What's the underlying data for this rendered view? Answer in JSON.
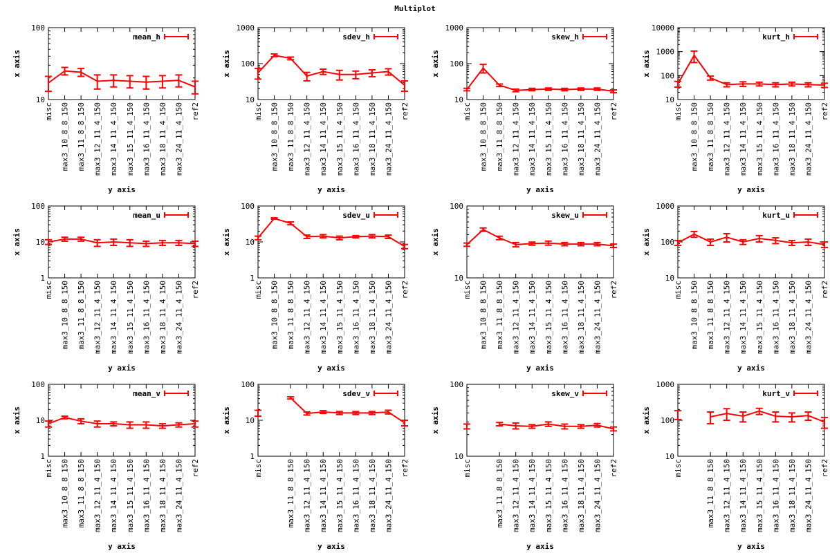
{
  "page": {
    "title": "Multiplot"
  },
  "chart_data": [
    {
      "type": "line",
      "title": "",
      "xlabel": "y axis",
      "ylabel": "x axis",
      "yscale": "log",
      "ylim": [
        10,
        100
      ],
      "yticks": [
        "10",
        "100"
      ],
      "categories": [
        "misc",
        "max3_10_8_8_150",
        "max3_11_8_8_150",
        "max3_12_11_4_150",
        "max3_14_11_4_150",
        "max3_15_11_4_150",
        "max3_16_11_4_150",
        "max3_18_11_4_150",
        "max3_24_11_4_150",
        "ref2"
      ],
      "series": [
        {
          "name": "mean_h",
          "color": "#ff0000",
          "values": [
            17,
            25,
            24,
            18,
            18.5,
            18,
            17.5,
            18,
            18.5,
            15
          ],
          "errors": [
            4,
            3,
            3,
            4,
            3.5,
            3.5,
            3.5,
            3.5,
            3.5,
            3
          ]
        }
      ]
    },
    {
      "type": "line",
      "title": "",
      "xlabel": "y axis",
      "ylabel": "x axis",
      "yscale": "log",
      "ylim": [
        10,
        1000
      ],
      "yticks": [
        "10",
        "100",
        "1000"
      ],
      "categories": [
        "misc",
        "max3_10_8_8_150",
        "max3_11_8_8_150",
        "max3_12_11_4_150",
        "max3_14_11_4_150",
        "max3_15_11_4_150",
        "max3_16_11_4_150",
        "max3_18_11_4_150",
        "max3_24_11_4_150",
        "ref2"
      ],
      "series": [
        {
          "name": "sdev_h",
          "color": "#ff0000",
          "values": [
            55,
            170,
            140,
            45,
            60,
            50,
            50,
            55,
            60,
            25
          ],
          "errors": [
            18,
            15,
            12,
            12,
            10,
            15,
            12,
            12,
            12,
            8
          ]
        }
      ]
    },
    {
      "type": "line",
      "title": "",
      "xlabel": "y axis",
      "ylabel": "x axis",
      "yscale": "log",
      "ylim": [
        10,
        1000
      ],
      "yticks": [
        "10",
        "100",
        "1000"
      ],
      "categories": [
        "misc",
        "max3_10_8_8_150",
        "max3_11_8_8_150",
        "max3_12_11_4_150",
        "max3_14_11_4_150",
        "max3_15_11_4_150",
        "max3_16_11_4_150",
        "max3_18_11_4_150",
        "max3_24_11_4_150",
        "ref2"
      ],
      "series": [
        {
          "name": "skew_h",
          "color": "#ff0000",
          "values": [
            19,
            75,
            25,
            18,
            19,
            19.5,
            19,
            19.5,
            19.5,
            17
          ],
          "errors": [
            1.5,
            20,
            2,
            1.5,
            1.5,
            1.5,
            1.5,
            1.5,
            1.5,
            1.5
          ]
        }
      ]
    },
    {
      "type": "line",
      "title": "",
      "xlabel": "y axis",
      "ylabel": "x axis",
      "yscale": "log",
      "ylim": [
        10,
        10000
      ],
      "yticks": [
        "10",
        "100",
        "1000",
        "10000"
      ],
      "categories": [
        "misc",
        "max3_10_8_8_150",
        "max3_11_8_8_150",
        "max3_12_11_4_150",
        "max3_14_11_4_150",
        "max3_15_11_4_150",
        "max3_16_11_4_150",
        "max3_18_11_4_150",
        "max3_24_11_4_150",
        "ref2"
      ],
      "series": [
        {
          "name": "kurt_h",
          "color": "#ff0000",
          "values": [
            45,
            700,
            80,
            42,
            45,
            45,
            42,
            45,
            42,
            40
          ],
          "errors": [
            12,
            350,
            15,
            8,
            10,
            8,
            8,
            8,
            8,
            8
          ]
        }
      ]
    },
    {
      "type": "line",
      "title": "",
      "xlabel": "y axis",
      "ylabel": "x axis",
      "yscale": "log",
      "ylim": [
        1,
        100
      ],
      "yticks": [
        "1",
        "10",
        "100"
      ],
      "categories": [
        "misc",
        "max3_10_8_8_150",
        "max3_11_8_8_150",
        "max3_12_11_4_150",
        "max3_14_11_4_150",
        "max3_15_11_4_150",
        "max3_16_11_4_150",
        "max3_18_11_4_150",
        "max3_24_11_4_150",
        "ref2"
      ],
      "series": [
        {
          "name": "mean_u",
          "color": "#ff0000",
          "values": [
            10,
            12,
            12,
            9.5,
            10,
            9.5,
            9,
            9.5,
            9.5,
            9
          ],
          "errors": [
            1.5,
            1.5,
            1.5,
            2,
            2,
            2,
            1.5,
            1.5,
            1.5,
            1.5
          ]
        }
      ]
    },
    {
      "type": "line",
      "title": "",
      "xlabel": "y axis",
      "ylabel": "x axis",
      "yscale": "log",
      "ylim": [
        1,
        100
      ],
      "yticks": [
        "1",
        "10",
        "100"
      ],
      "categories": [
        "misc",
        "max3_10_8_8_150",
        "max3_11_8_8_150",
        "max3_12_11_4_150",
        "max3_14_11_4_150",
        "max3_15_11_4_150",
        "max3_16_11_4_150",
        "max3_18_11_4_150",
        "max3_24_11_4_150",
        "ref2"
      ],
      "series": [
        {
          "name": "sdev_u",
          "color": "#ff0000",
          "values": [
            13,
            45,
            33,
            14,
            14.5,
            13,
            14,
            14.5,
            14,
            7.5
          ],
          "errors": [
            1.5,
            2,
            3,
            1.5,
            1.5,
            1.5,
            1,
            1.5,
            1.5,
            1
          ]
        }
      ]
    },
    {
      "type": "line",
      "title": "",
      "xlabel": "y axis",
      "ylabel": "x axis",
      "yscale": "log",
      "ylim": [
        10,
        100
      ],
      "yticks": [
        "10",
        "100"
      ],
      "categories": [
        "misc",
        "max3_10_8_8_150",
        "max3_11_8_8_150",
        "max3_12_11_4_150",
        "max3_14_11_4_150",
        "max3_15_11_4_150",
        "max3_16_11_4_150",
        "max3_18_11_4_150",
        "max3_24_11_4_150",
        "ref2"
      ],
      "series": [
        {
          "name": "skew_u",
          "color": "#ff0000",
          "values": [
            29,
            47,
            36,
            29,
            30,
            30.5,
            29.5,
            29.5,
            29.5,
            28
          ],
          "errors": [
            1.5,
            2.5,
            2,
            2,
            1.5,
            2,
            1.5,
            1.5,
            1.5,
            1.5
          ]
        }
      ]
    },
    {
      "type": "line",
      "title": "",
      "xlabel": "y axis",
      "ylabel": "x axis",
      "yscale": "log",
      "ylim": [
        10,
        1000
      ],
      "yticks": [
        "10",
        "100",
        "1000"
      ],
      "categories": [
        "misc",
        "max3_10_8_8_150",
        "max3_11_8_8_150",
        "max3_12_11_4_150",
        "max3_14_11_4_150",
        "max3_15_11_4_150",
        "max3_16_11_4_150",
        "max3_18_11_4_150",
        "max3_24_11_4_150",
        "ref2"
      ],
      "series": [
        {
          "name": "kurt_u",
          "color": "#ff0000",
          "values": [
            95,
            165,
            100,
            135,
            100,
            125,
            110,
            95,
            100,
            85
          ],
          "errors": [
            15,
            30,
            20,
            35,
            15,
            25,
            20,
            15,
            20,
            15
          ]
        }
      ]
    },
    {
      "type": "line",
      "title": "",
      "xlabel": "y axis",
      "ylabel": "x axis",
      "yscale": "log",
      "ylim": [
        1,
        100
      ],
      "yticks": [
        "1",
        "10",
        "100"
      ],
      "categories": [
        "misc",
        "max3_10_8_8_150",
        "max3_11_8_8_150",
        "max3_12_11_4_150",
        "max3_14_11_4_150",
        "max3_15_11_4_150",
        "max3_16_11_4_150",
        "max3_18_11_4_150",
        "max3_24_11_4_150",
        "ref2"
      ],
      "series": [
        {
          "name": "mean_v",
          "color": "#ff0000",
          "values": [
            8,
            12,
            9.5,
            8,
            8,
            7.5,
            7.5,
            7,
            7.5,
            8
          ],
          "errors": [
            1.5,
            1,
            1.5,
            1.5,
            1,
            1.5,
            1.5,
            1,
            1,
            1.5
          ]
        }
      ]
    },
    {
      "type": "line",
      "title": "",
      "xlabel": "y axis",
      "ylabel": "x axis",
      "yscale": "log",
      "ylim": [
        1,
        100
      ],
      "yticks": [
        "1",
        "10",
        "100"
      ],
      "categories": [
        "misc",
        "max3_11_8_8_150",
        "max3_12_11_4_150",
        "max3_14_11_4_150",
        "max3_15_11_4_150",
        "max3_16_11_4_150",
        "max3_18_11_4_150",
        "max3_24_11_4_150",
        "ref2"
      ],
      "x_positions": [
        0,
        2,
        3,
        4,
        5,
        6,
        7,
        8,
        9
      ],
      "series": [
        {
          "name": "sdev_v",
          "color": "#ff0000",
          "values": [
            16,
            42,
            15.5,
            17,
            16,
            16,
            16,
            17,
            8.5
          ],
          "errors": [
            3,
            3,
            1.5,
            1.5,
            1.5,
            1.5,
            1.5,
            2,
            1.5
          ]
        }
      ]
    },
    {
      "type": "line",
      "title": "",
      "xlabel": "y axis",
      "ylabel": "x axis",
      "yscale": "log",
      "ylim": [
        10,
        100
      ],
      "yticks": [
        "10",
        "100"
      ],
      "categories": [
        "misc",
        "max3_11_8_8_150",
        "max3_12_11_4_150",
        "max3_14_11_4_150",
        "max3_15_11_4_150",
        "max3_16_11_4_150",
        "max3_18_11_4_150",
        "max3_24_11_4_150",
        "ref2"
      ],
      "x_positions": [
        0,
        2,
        3,
        4,
        5,
        6,
        7,
        8,
        9
      ],
      "series": [
        {
          "name": "skew_v",
          "color": "#ff0000",
          "values": [
            26,
            28,
            26.5,
            26,
            28,
            26,
            26,
            27,
            24
          ],
          "errors": [
            2,
            1.5,
            2.5,
            1.5,
            2,
            2,
            1.5,
            1.5,
            1.5
          ]
        }
      ]
    },
    {
      "type": "line",
      "title": "",
      "xlabel": "y axis",
      "ylabel": "x axis",
      "yscale": "log",
      "ylim": [
        10,
        1000
      ],
      "yticks": [
        "10",
        "100",
        "1000"
      ],
      "categories": [
        "misc",
        "max3_11_8_8_150",
        "max3_12_11_4_150",
        "max3_14_11_4_150",
        "max3_15_11_4_150",
        "max3_16_11_4_150",
        "max3_18_11_4_150",
        "max3_24_11_4_150",
        "ref2"
      ],
      "x_positions": [
        0,
        2,
        3,
        4,
        5,
        6,
        7,
        8,
        9
      ],
      "series": [
        {
          "name": "kurt_v",
          "color": "#ff0000",
          "values": [
            145,
            125,
            155,
            130,
            180,
            130,
            125,
            135,
            90
          ],
          "errors": [
            40,
            45,
            55,
            40,
            35,
            40,
            35,
            35,
            30
          ]
        }
      ]
    }
  ]
}
